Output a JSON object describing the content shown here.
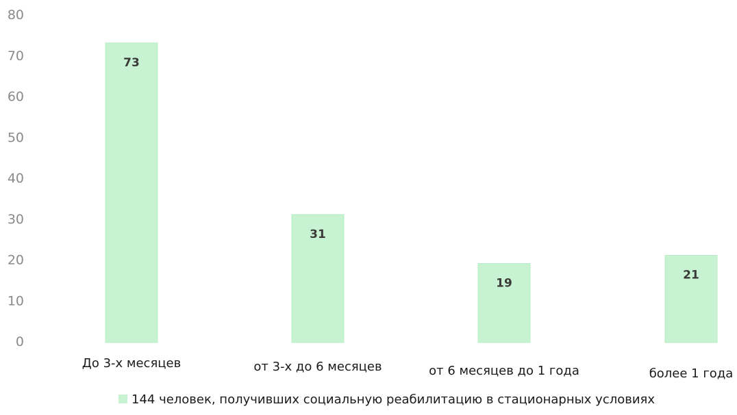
{
  "chart_data": {
    "type": "bar",
    "categories": [
      "До 3-х месяцев",
      "от 3-х до 6 месяцев",
      "от 6 месяцев до 1 года",
      "более 1 года"
    ],
    "series": [
      {
        "name": "144 человек, получивших социальную реабилитацию в стационарных условиях",
        "values": [
          73,
          31,
          19,
          21
        ]
      }
    ],
    "y_ticks": [
      "0",
      "10",
      "20",
      "30",
      "40",
      "50",
      "60",
      "70",
      "80"
    ],
    "ylim": [
      0,
      80
    ],
    "grid": false,
    "legend_position": "bottom",
    "bar_color": "#c8f3d2",
    "bar_edge_color": "#b6ecc3",
    "title": "",
    "xlabel": "",
    "ylabel": ""
  }
}
